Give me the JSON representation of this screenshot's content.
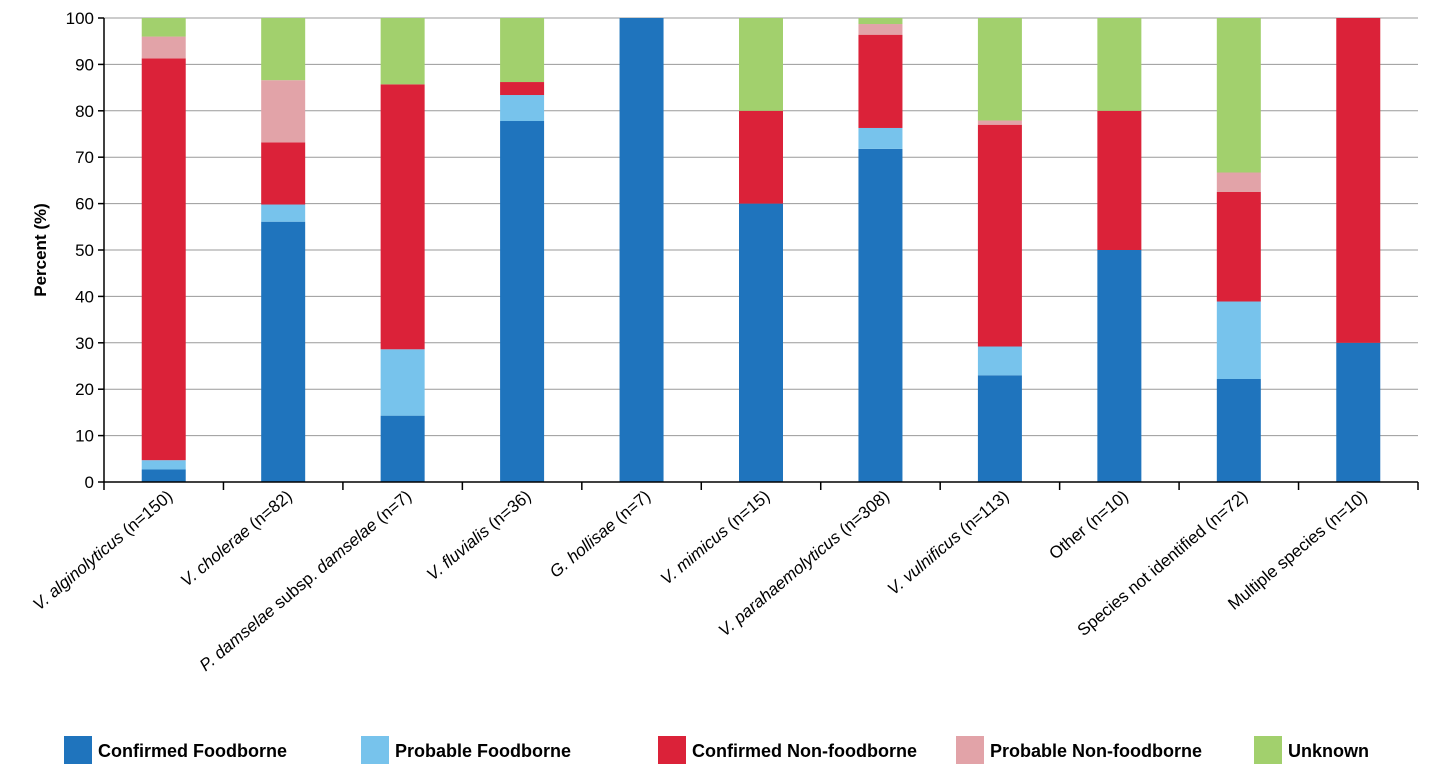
{
  "chart_data": {
    "type": "bar",
    "stacked": true,
    "title": "",
    "xlabel": "",
    "ylabel": "Percent (%)",
    "ylim": [
      0,
      100
    ],
    "yticks": [
      0,
      10,
      20,
      30,
      40,
      50,
      60,
      70,
      80,
      90,
      100
    ],
    "grid": true,
    "legend_position": "bottom",
    "categories": [
      [
        {
          "t": "V. alginolyticus",
          "i": true
        },
        {
          "t": " (n=150)",
          "i": false
        }
      ],
      [
        {
          "t": "V. cholerae",
          "i": true
        },
        {
          "t": " (n=82)",
          "i": false
        }
      ],
      [
        {
          "t": "P. damselae",
          "i": true
        },
        {
          "t": " subsp. ",
          "i": false
        },
        {
          "t": "damselae",
          "i": true
        },
        {
          "t": " (n=7)",
          "i": false
        }
      ],
      [
        {
          "t": "V. fluvialis",
          "i": true
        },
        {
          "t": " (n=36)",
          "i": false
        }
      ],
      [
        {
          "t": "G. hollisae",
          "i": true
        },
        {
          "t": " (n=7)",
          "i": false
        }
      ],
      [
        {
          "t": "V. mimicus",
          "i": true
        },
        {
          "t": " (n=15)",
          "i": false
        }
      ],
      [
        {
          "t": "V. parahaemolyticus",
          "i": true
        },
        {
          "t": " (n=308)",
          "i": false
        }
      ],
      [
        {
          "t": "V. vulnificus",
          "i": true
        },
        {
          "t": " (n=113)",
          "i": false
        }
      ],
      [
        {
          "t": "Other (n=10)",
          "i": false
        }
      ],
      [
        {
          "t": "Species not identified (n=72)",
          "i": false
        }
      ],
      [
        {
          "t": "Multiple species (n=10)",
          "i": false
        }
      ]
    ],
    "series": [
      {
        "name": "Confirmed Foodborne",
        "color": "#1f74bd",
        "values": [
          2.7,
          56.1,
          14.3,
          77.8,
          100,
          60.0,
          71.8,
          23.0,
          50.0,
          22.2,
          30.0
        ]
      },
      {
        "name": "Probable Foodborne",
        "color": "#77c3ec",
        "values": [
          2.0,
          3.7,
          14.3,
          5.6,
          0,
          0,
          4.5,
          6.2,
          0,
          16.7,
          0
        ]
      },
      {
        "name": "Confirmed Non-foodborne",
        "color": "#db2239",
        "values": [
          86.6,
          13.4,
          57.1,
          2.8,
          0,
          20.0,
          20.1,
          47.8,
          30.0,
          23.6,
          70.0
        ]
      },
      {
        "name": "Probable Non-foodborne",
        "color": "#e2a3a8",
        "values": [
          4.7,
          13.4,
          0,
          0,
          0,
          0,
          2.3,
          0.9,
          0,
          4.2,
          0
        ]
      },
      {
        "name": "Unknown",
        "color": "#a2d06d",
        "values": [
          4.0,
          13.4,
          14.3,
          13.8,
          0,
          20.0,
          1.3,
          22.1,
          20.0,
          33.3,
          0
        ]
      }
    ]
  }
}
